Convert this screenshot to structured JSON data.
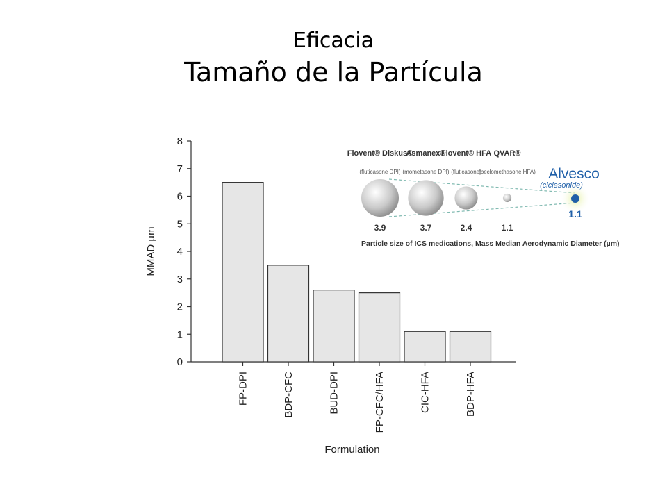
{
  "slide": {
    "title": "Eficacia",
    "subtitle": "Tamaño de la Partícula"
  },
  "chart_data": {
    "type": "bar",
    "categories": [
      "FP-DPI",
      "BDP-CFC",
      "BUD-DPI",
      "FP-CFC/HFA",
      "CIC-HFA",
      "BDP-HFA"
    ],
    "values": [
      6.5,
      3.5,
      2.6,
      2.5,
      1.1,
      1.1
    ],
    "xlabel": "Formulation",
    "ylabel": "MMAD µm",
    "ylim": [
      0,
      8
    ],
    "yticks": [
      0,
      1,
      2,
      3,
      4,
      5,
      6,
      7,
      8
    ],
    "bar_color": "#e6e6e6",
    "grid": false
  },
  "inset": {
    "products": [
      {
        "name": "Flovent® Diskus®",
        "detail": "(fluticasone DPI)",
        "value": 3.9
      },
      {
        "name": "Asmanex®",
        "detail": "(mometasone DPI)",
        "value": 3.7
      },
      {
        "name": "Flovent® HFA",
        "detail": "(fluticasone)",
        "value": 2.4
      },
      {
        "name": "QVAR®",
        "detail": "(beclomethasone HFA)",
        "value": 1.1
      }
    ],
    "highlight": {
      "name": "Alvesco",
      "detail": "(ciclesonide)",
      "value": 1.1,
      "color": "#1f5fa8",
      "glow": "#e3f0a0"
    },
    "caption": "Particle size of ICS medications, Mass Median Aerodynamic Diameter (µm)"
  }
}
